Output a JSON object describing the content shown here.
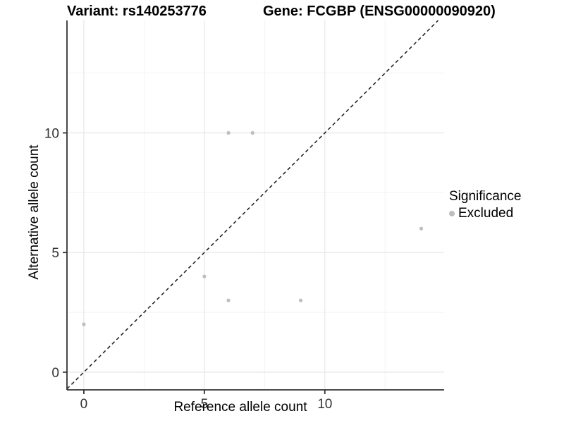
{
  "titles": {
    "left": "Variant: rs140253776",
    "right": "Gene: FCGBP (ENSG00000090920)"
  },
  "chart_data": {
    "type": "scatter",
    "title_left": "Variant: rs140253776",
    "title_right": "Gene: FCGBP (ENSG00000090920)",
    "xlabel": "Reference allele count",
    "ylabel": "Alternative allele count",
    "xlim": [
      -0.7,
      14.95
    ],
    "ylim": [
      -0.74,
      14.7
    ],
    "x_ticks": [
      0,
      5,
      10
    ],
    "x_tick_labels": [
      "0",
      "5",
      "10"
    ],
    "y_ticks": [
      0,
      5,
      10
    ],
    "y_tick_labels": [
      "0",
      "5",
      "10"
    ],
    "x_minor_ticks": [
      2.5,
      7.5,
      12.5
    ],
    "y_minor_ticks": [
      2.5,
      7.5,
      12.5
    ],
    "grid": true,
    "series": [
      {
        "name": "Excluded",
        "color": "#BEBEBE",
        "points": [
          {
            "x": 0,
            "y": 2
          },
          {
            "x": 5,
            "y": 4
          },
          {
            "x": 6,
            "y": 3
          },
          {
            "x": 6,
            "y": 10
          },
          {
            "x": 7,
            "y": 10
          },
          {
            "x": 9,
            "y": 3
          },
          {
            "x": 14,
            "y": 6
          }
        ]
      }
    ],
    "identity_line": {
      "slope": 1,
      "intercept": 0,
      "style": "dashed",
      "color": "#1a1a1a"
    },
    "legend": {
      "position": "right",
      "title": "Significance",
      "entries": [
        {
          "label": "Excluded",
          "color": "#BEBEBE"
        }
      ]
    }
  },
  "colors": {
    "point": "#BEBEBE",
    "axis_line": "#333333",
    "tick_label": "#333333",
    "grid_major": "#E6E6E6",
    "grid_minor": "#F2F2F2",
    "background": "#FFFFFF"
  }
}
